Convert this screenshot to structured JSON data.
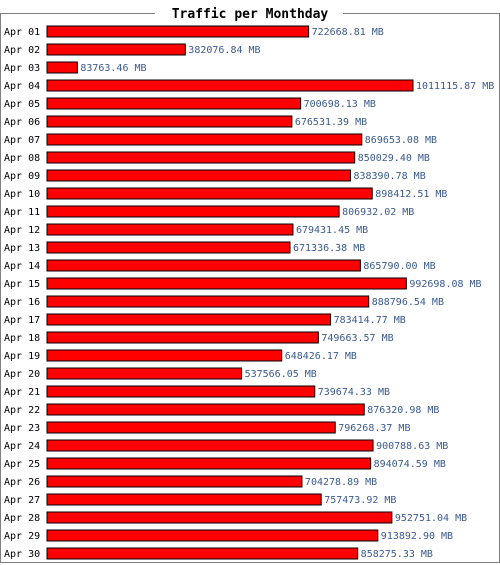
{
  "chart_data": {
    "type": "bar",
    "orientation": "horizontal",
    "title": "Traffic per Monthday",
    "unit": "MB",
    "bar_color": "#ff0000",
    "bar_border_color": "#000000",
    "value_label_color": "#3a5a8c",
    "categories": [
      "Apr 01",
      "Apr 02",
      "Apr 03",
      "Apr 04",
      "Apr 05",
      "Apr 06",
      "Apr 07",
      "Apr 08",
      "Apr 09",
      "Apr 10",
      "Apr 11",
      "Apr 12",
      "Apr 13",
      "Apr 14",
      "Apr 15",
      "Apr 16",
      "Apr 17",
      "Apr 18",
      "Apr 19",
      "Apr 20",
      "Apr 21",
      "Apr 22",
      "Apr 23",
      "Apr 24",
      "Apr 25",
      "Apr 26",
      "Apr 27",
      "Apr 28",
      "Apr 29",
      "Apr 30"
    ],
    "values": [
      722668.81,
      382076.84,
      83763.46,
      1011115.87,
      700698.13,
      676531.39,
      869653.08,
      850029.4,
      838390.78,
      898412.51,
      806932.02,
      679431.45,
      671336.38,
      865790.0,
      992698.08,
      888796.54,
      783414.77,
      749663.57,
      648426.17,
      537566.05,
      739674.33,
      876320.98,
      796268.37,
      900788.63,
      894074.59,
      704278.89,
      757473.92,
      952751.04,
      913892.9,
      858275.33
    ],
    "value_labels": [
      "722668.81 MB",
      "382076.84 MB",
      "83763.46 MB",
      "1011115.87 MB",
      "700698.13 MB",
      "676531.39 MB",
      "869653.08 MB",
      "850029.40 MB",
      "838390.78 MB",
      "898412.51 MB",
      "806932.02 MB",
      "679431.45 MB",
      "671336.38 MB",
      "865790.00 MB",
      "992698.08 MB",
      "888796.54 MB",
      "783414.77 MB",
      "749663.57 MB",
      "648426.17 MB",
      "537566.05 MB",
      "739674.33 MB",
      "876320.98 MB",
      "796268.37 MB",
      "900788.63 MB",
      "894074.59 MB",
      "704278.89 MB",
      "757473.92 MB",
      "952751.04 MB",
      "913892.90 MB",
      "858275.33 MB"
    ]
  }
}
